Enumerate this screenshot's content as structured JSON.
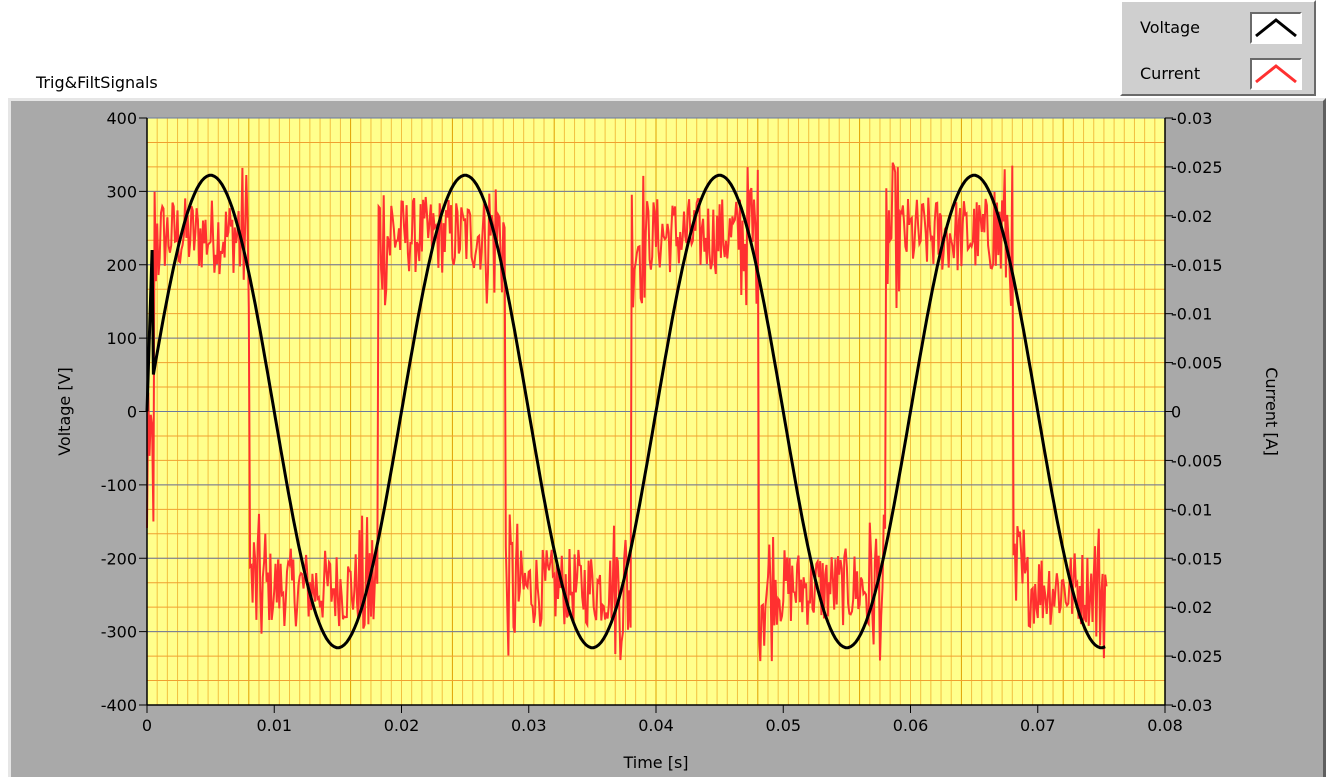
{
  "title": "Trig&FiltSignals",
  "legend": [
    {
      "label": "Voltage",
      "color": "#000000"
    },
    {
      "label": "Current",
      "color": "#ff3030"
    }
  ],
  "chart_data": {
    "type": "line",
    "xlabel": "Time [s]",
    "ylabel": "Voltage [V]",
    "y2label": "Current [A]",
    "xlim": [
      0,
      0.08
    ],
    "ylim": [
      -400,
      400
    ],
    "y2lim": [
      -0.03,
      0.03
    ],
    "xticks": [
      "0",
      "0.01",
      "0.02",
      "0.03",
      "0.04",
      "0.05",
      "0.06",
      "0.07",
      "0.08"
    ],
    "yticks": [
      "400",
      "300",
      "200",
      "100",
      "0",
      "-100",
      "-200",
      "-300",
      "-400"
    ],
    "y2ticks": [
      "-0.03",
      "-0.025",
      "-0.02",
      "-0.015",
      "-0.01",
      "-0.005",
      "0",
      "-0.005",
      "-0.01",
      "-0.015",
      "-0.02",
      "-0.025",
      "-0.03"
    ],
    "grid": true,
    "legend_position": "top-right",
    "series": [
      {
        "name": "Voltage",
        "axis": "left",
        "color": "#000000",
        "x": [
          0,
          0.0005,
          0.001,
          0.002,
          0.003,
          0.004,
          0.005,
          0.006,
          0.007,
          0.008,
          0.009,
          0.01,
          0.011,
          0.012,
          0.013,
          0.014,
          0.015,
          0.016,
          0.017,
          0.018,
          0.019,
          0.02,
          0.021,
          0.022,
          0.023,
          0.024,
          0.025,
          0.026,
          0.027,
          0.028,
          0.029,
          0.03,
          0.031,
          0.032,
          0.033,
          0.034,
          0.035,
          0.036,
          0.037,
          0.038,
          0.039,
          0.04,
          0.041,
          0.042,
          0.043,
          0.044,
          0.045,
          0.046,
          0.047,
          0.048,
          0.049,
          0.05,
          0.051,
          0.052,
          0.053,
          0.054,
          0.055,
          0.056,
          0.057,
          0.058,
          0.059,
          0.06,
          0.061,
          0.062,
          0.063,
          0.064,
          0.065,
          0.066,
          0.067,
          0.068,
          0.069,
          0.07,
          0.071,
          0.072,
          0.073,
          0.074,
          0.0755
        ],
        "y": [
          0,
          225,
          257,
          306,
          322,
          306,
          260,
          189,
          99,
          0,
          -99,
          -189,
          -260,
          -306,
          -322,
          -306,
          -260,
          -189,
          -99,
          0,
          99,
          189,
          260,
          306,
          322,
          306,
          260,
          189,
          99,
          0,
          -99,
          -189,
          -260,
          -306,
          -322,
          -306,
          -260,
          -189,
          -99,
          0,
          99,
          189,
          260,
          306,
          322,
          306,
          260,
          189,
          99,
          0,
          -99,
          -189,
          -260,
          -306,
          -322,
          -306,
          -260,
          -189,
          -99,
          0,
          99,
          189,
          260,
          306,
          322,
          306,
          260,
          189,
          99,
          0,
          -99,
          -189,
          -260,
          -306,
          -322,
          -306,
          -245
        ]
      },
      {
        "name": "Current",
        "axis": "right",
        "color": "#ff3030",
        "x_start": 0,
        "x_end": 0.0755,
        "dx": 0.0001,
        "description_levels": [
          {
            "from": 0.0,
            "to": 0.0081,
            "center": 0.018,
            "noise": 0.004
          },
          {
            "from": 0.0081,
            "to": 0.0181,
            "center": -0.018,
            "noise": 0.004
          },
          {
            "from": 0.0181,
            "to": 0.0281,
            "center": 0.018,
            "noise": 0.004
          },
          {
            "from": 0.0281,
            "to": 0.0381,
            "center": -0.018,
            "noise": 0.004
          },
          {
            "from": 0.0381,
            "to": 0.0481,
            "center": 0.018,
            "noise": 0.004
          },
          {
            "from": 0.0481,
            "to": 0.0581,
            "center": -0.018,
            "noise": 0.004
          },
          {
            "from": 0.0581,
            "to": 0.0681,
            "center": 0.018,
            "noise": 0.004
          },
          {
            "from": 0.0681,
            "to": 0.0755,
            "center": -0.018,
            "noise": 0.004
          }
        ]
      }
    ]
  }
}
